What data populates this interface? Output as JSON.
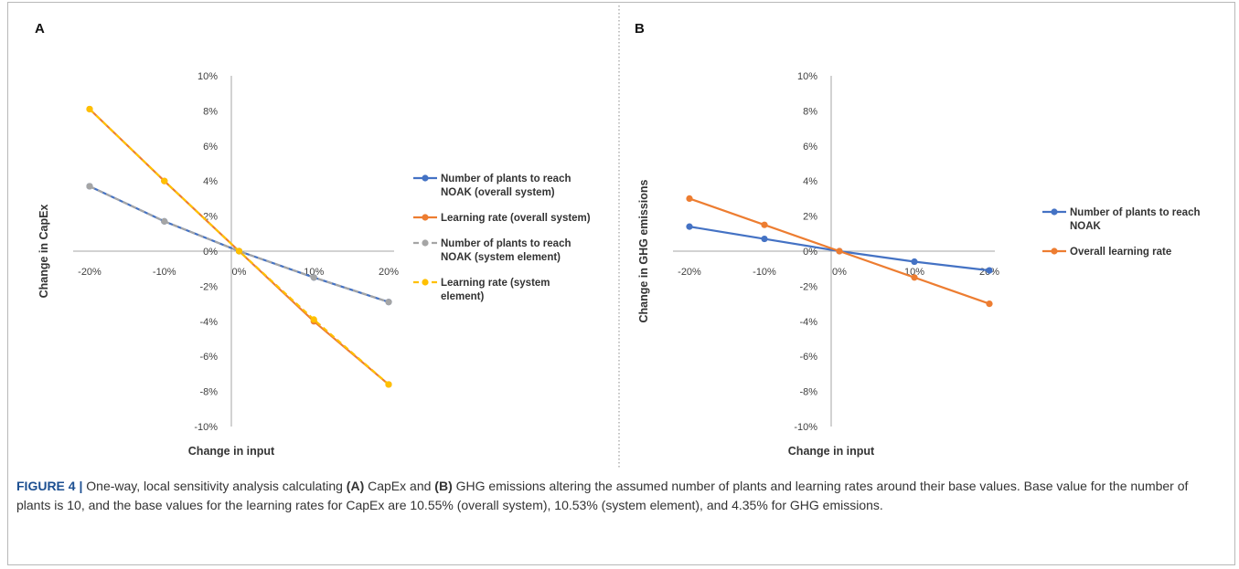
{
  "figure": {
    "caption": {
      "label": "FIGURE 4 |",
      "part1": "One-way, local sensitivity analysis calculating",
      "ref_a": "(A)",
      "part2": "CapEx and",
      "ref_b": "(B)",
      "part3": "GHG emissions altering the assumed number of plants and learning rates around their base values. Base value for the number of plants is 10, and the base values for the learning rates for CapEx are 10.55% (overall system), 10.53% (system element), and 4.35% for GHG emissions."
    }
  },
  "chart_data": [
    {
      "type": "line",
      "panel_label": "A",
      "xlabel": "Change in input",
      "ylabel": "Change in CapEx",
      "x": [
        "-20%",
        "-10%",
        "0%",
        "10%",
        "20%"
      ],
      "y_ticks": [
        "10%",
        "8%",
        "6%",
        "4%",
        "2%",
        "0%",
        "-2%",
        "-4%",
        "-6%",
        "-8%",
        "-10%"
      ],
      "ylim": [
        -10,
        10
      ],
      "grid": false,
      "legend_position": "right",
      "series": [
        {
          "name_lines": [
            "Number of plants to reach",
            "NOAK (overall system)"
          ],
          "values": [
            3.7,
            1.7,
            0,
            -1.5,
            -2.9
          ],
          "color": "#4472c4",
          "dashed": false
        },
        {
          "name_lines": [
            "Learning rate (overall system)"
          ],
          "values": [
            8.1,
            4.0,
            0,
            -4.0,
            -7.6
          ],
          "color": "#ed7d31",
          "dashed": false
        },
        {
          "name_lines": [
            "Number of plants to reach",
            "NOAK (system element)"
          ],
          "values": [
            3.7,
            1.7,
            0,
            -1.5,
            -2.9
          ],
          "color": "#a5a5a5",
          "dashed": true
        },
        {
          "name_lines": [
            "Learning rate (system",
            "element)"
          ],
          "values": [
            8.1,
            4.0,
            0,
            -3.9,
            -7.6
          ],
          "color": "#ffc000",
          "dashed": true
        }
      ]
    },
    {
      "type": "line",
      "panel_label": "B",
      "xlabel": "Change in input",
      "ylabel": "Change in GHG emissions",
      "x": [
        "-20%",
        "-10%",
        "0%",
        "10%",
        "20%"
      ],
      "y_ticks": [
        "10%",
        "8%",
        "6%",
        "4%",
        "2%",
        "0%",
        "-2%",
        "-4%",
        "-6%",
        "-8%",
        "-10%"
      ],
      "ylim": [
        -10,
        10
      ],
      "grid": false,
      "legend_position": "right",
      "series": [
        {
          "name_lines": [
            "Number of plants to reach",
            "NOAK"
          ],
          "values": [
            1.4,
            0.7,
            0,
            -0.6,
            -1.1
          ],
          "color": "#4472c4",
          "dashed": false
        },
        {
          "name_lines": [
            "Overall learning rate"
          ],
          "values": [
            3.0,
            1.5,
            0,
            -1.5,
            -3.0
          ],
          "color": "#ed7d31",
          "dashed": false
        }
      ]
    }
  ]
}
